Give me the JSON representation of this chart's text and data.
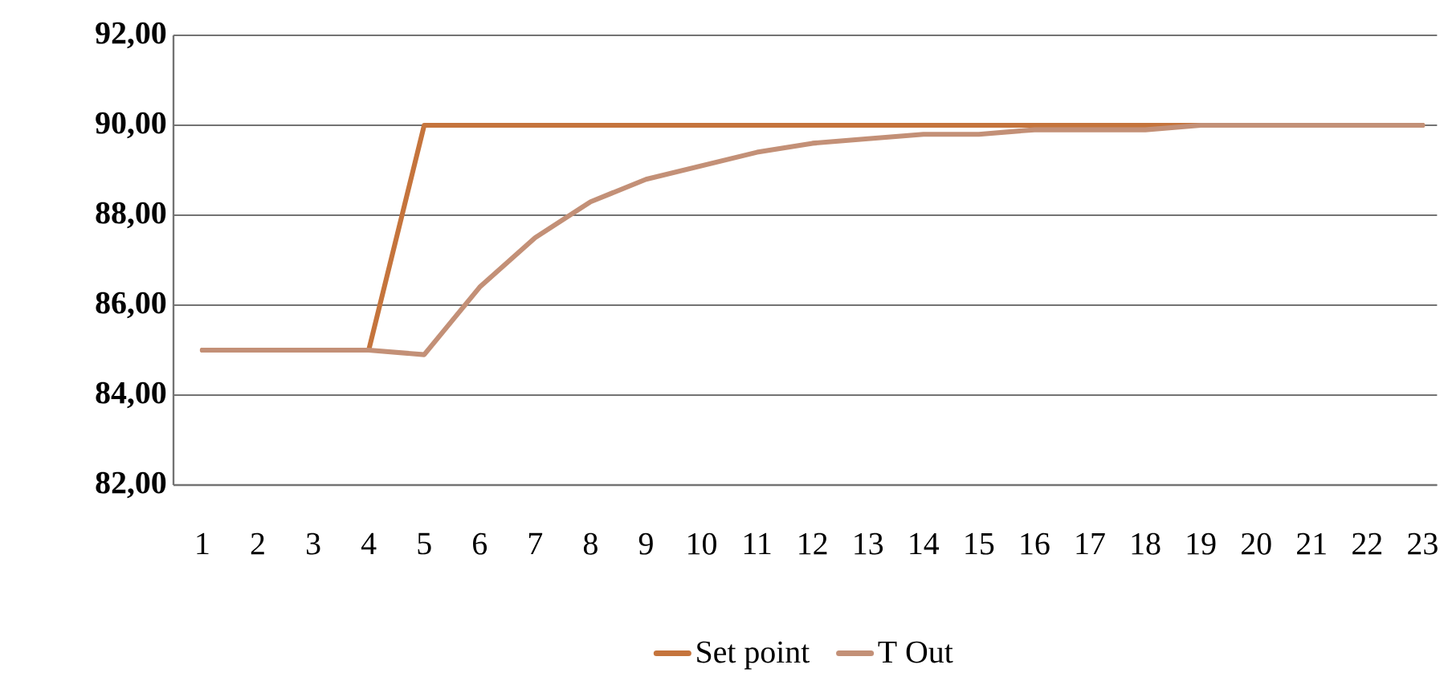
{
  "chart_data": {
    "type": "line",
    "categories": [
      "1",
      "2",
      "3",
      "4",
      "5",
      "6",
      "7",
      "8",
      "9",
      "10",
      "11",
      "12",
      "13",
      "14",
      "15",
      "16",
      "17",
      "18",
      "19",
      "20",
      "21",
      "22",
      "23"
    ],
    "series": [
      {
        "name": "Set point",
        "color": "#c5743c",
        "values": [
          85,
          85,
          85,
          85,
          90,
          90,
          90,
          90,
          90,
          90,
          90,
          90,
          90,
          90,
          90,
          90,
          90,
          90,
          90,
          90,
          90,
          90,
          90
        ]
      },
      {
        "name": "T Out",
        "color": "#c39077",
        "values": [
          85,
          85,
          85,
          85,
          84.9,
          86.4,
          87.5,
          88.3,
          88.8,
          89.1,
          89.4,
          89.6,
          89.7,
          89.8,
          89.8,
          89.9,
          89.9,
          89.9,
          90,
          90,
          90,
          90,
          90
        ]
      }
    ],
    "ylim": [
      82,
      92
    ],
    "yticks": [
      {
        "value": 82,
        "label": "82,00"
      },
      {
        "value": 84,
        "label": "84,00"
      },
      {
        "value": 86,
        "label": "86,00"
      },
      {
        "value": 88,
        "label": "88,00"
      },
      {
        "value": 90,
        "label": "90,00"
      },
      {
        "value": 92,
        "label": "92,00"
      }
    ],
    "grid": "y",
    "legend": "bottom",
    "marker": "none",
    "line_style": "solid"
  }
}
